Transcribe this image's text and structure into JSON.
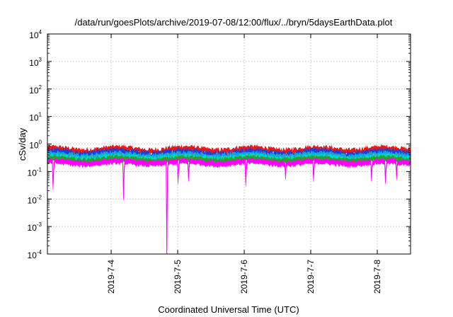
{
  "chart_data": {
    "type": "area",
    "title": "/data/run/goesPlots/archive/2019-07-08/12:00/flux/../bryn/5daysEarthData.plot",
    "xlabel": "Coordinated Universal Time (UTC)",
    "ylabel": "cSv/day",
    "y_scale": "log",
    "ylim": [
      0.0001,
      10000
    ],
    "y_ticks": [
      {
        "base": "10",
        "exp": "4"
      },
      {
        "base": "10",
        "exp": "3"
      },
      {
        "base": "10",
        "exp": "2"
      },
      {
        "base": "10",
        "exp": "1"
      },
      {
        "base": "10",
        "exp": "0"
      },
      {
        "base": "10",
        "exp": "-1"
      },
      {
        "base": "10",
        "exp": "-2"
      },
      {
        "base": "10",
        "exp": "-3"
      },
      {
        "base": "10",
        "exp": "-4"
      }
    ],
    "xlim": [
      "2019-07-03 01:00",
      "2019-07-08 12:00"
    ],
    "x_ticks": [
      "2019-7-4",
      "2019-7-5",
      "2019-7-6",
      "2019-7-7",
      "2019-7-8"
    ],
    "grid": true,
    "legend": "none",
    "series": [
      {
        "color": "#e41a1c",
        "level_range": [
          0.45,
          0.9
        ]
      },
      {
        "color": "#1f3fd6",
        "level_range": [
          0.35,
          0.7
        ]
      },
      {
        "color": "#1aa1d6",
        "level_range": [
          0.3,
          0.55
        ]
      },
      {
        "color": "#00d6c8",
        "level_range": [
          0.25,
          0.45
        ]
      },
      {
        "color": "#2ca02c",
        "level_range": [
          0.22,
          0.38
        ]
      },
      {
        "color": "#ff00ff",
        "level_range": [
          0.18,
          0.3
        ],
        "dips": [
          {
            "x": "2019-07-03 03:00",
            "y": 0.03
          },
          {
            "x": "2019-07-04 04:30",
            "y": 0.013
          },
          {
            "x": "2019-07-04 20:00",
            "y": 0.0001
          },
          {
            "x": "2019-07-05 00:00",
            "y": 0.05
          },
          {
            "x": "2019-07-05 04:00",
            "y": 0.06
          },
          {
            "x": "2019-07-06 00:30",
            "y": 0.04
          },
          {
            "x": "2019-07-06 15:00",
            "y": 0.07
          },
          {
            "x": "2019-07-07 01:00",
            "y": 0.06
          },
          {
            "x": "2019-07-07 22:00",
            "y": 0.06
          },
          {
            "x": "2019-07-08 03:00",
            "y": 0.05
          },
          {
            "x": "2019-07-08 07:00",
            "y": 0.07
          }
        ]
      }
    ]
  }
}
